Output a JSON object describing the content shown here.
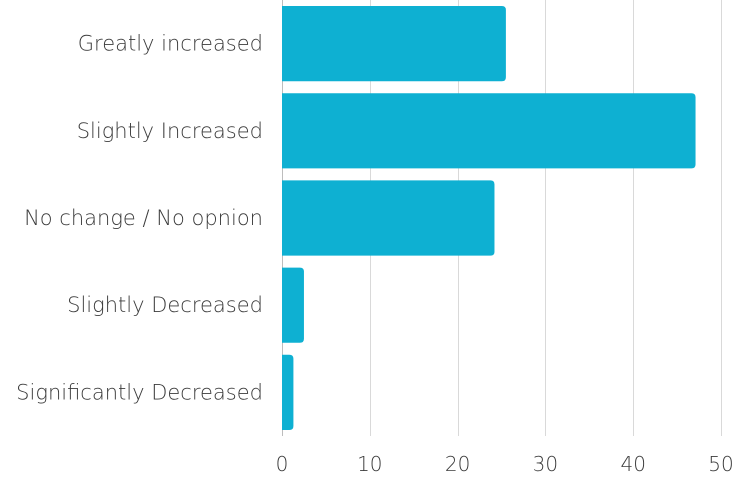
{
  "chart_data": {
    "type": "bar",
    "orientation": "horizontal",
    "title": "",
    "xlabel": "",
    "ylabel": "",
    "categories": [
      "Greatly increased",
      "Slightly Increased",
      "No change / No opnion",
      "Slightly Decreased",
      "Significantly Decreased"
    ],
    "values": [
      25.5,
      47.1,
      24.2,
      2.5,
      1.3
    ],
    "xlim": [
      0,
      50
    ],
    "xticks": [
      0,
      10,
      20,
      30,
      40,
      50
    ],
    "xtick_labels": [
      "0",
      "10",
      "20",
      "30",
      "40",
      "50"
    ],
    "grid": true,
    "bar_color": "#0eb0d2"
  }
}
